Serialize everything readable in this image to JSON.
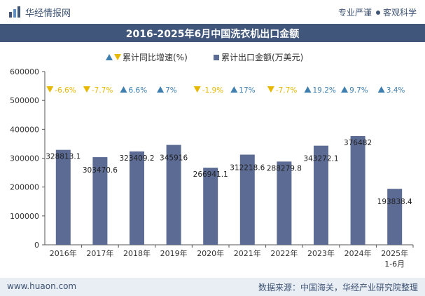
{
  "header": {
    "brand": "华经情报网",
    "tagline_left": "专业严谨",
    "tagline_right": "客观科学"
  },
  "footer": {
    "website": "www.huaon.com",
    "source": "数据来源：中国海关，华经产业研究院整理"
  },
  "colors": {
    "bar": "#5b6b94",
    "growth_up": "#3e7fb0",
    "growth_down": "#e6b800",
    "header_bg": "#40567a"
  },
  "chart_data": {
    "type": "bar",
    "title": "2016-2025年6月中国洗衣机出口金额",
    "categories": [
      "2016年",
      "2017年",
      "2018年",
      "2019年",
      "2020年",
      "2021年",
      "2022年",
      "2023年",
      "2024年",
      "2025年\n1-6月"
    ],
    "ylim": [
      0,
      600000
    ],
    "yticks": [
      "0",
      "100000",
      "200000",
      "300000",
      "400000",
      "500000",
      "600000"
    ],
    "legend": [
      "累计同比增速(%)",
      "累计出口金额(万美元)"
    ],
    "legend_position": "top",
    "grid": false,
    "series": [
      {
        "name": "累计出口金额(万美元)",
        "values": [
          328813.1,
          303470.6,
          323409.2,
          345916,
          266941.1,
          312218.6,
          288279.8,
          343272.1,
          376482,
          193838.4
        ],
        "labels": [
          "328813.1",
          "303470.6",
          "323409.2",
          "345916",
          "266941.1",
          "312218.6",
          "288279.8",
          "343272.1",
          "376482",
          "193838.4"
        ]
      },
      {
        "name": "累计同比增速(%)",
        "values": [
          -6.6,
          -7.7,
          6.6,
          7,
          -1.9,
          17,
          -7.7,
          19.2,
          9.7,
          3.4
        ],
        "labels": [
          "-6.6%",
          "-7.7%",
          "6.6%",
          "7%",
          "-1.9%",
          "17%",
          "-7.7%",
          "19.2%",
          "9.7%",
          "3.4%"
        ]
      }
    ]
  }
}
